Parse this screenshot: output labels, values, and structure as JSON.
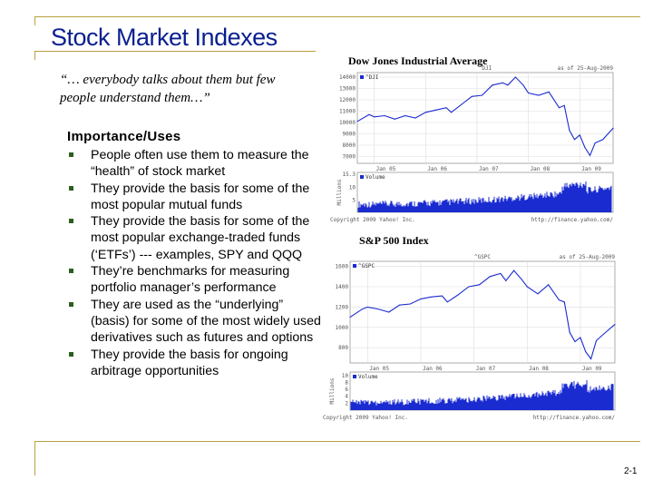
{
  "slide": {
    "title": "Stock Market Indexes",
    "quote": "“… everybody talks about them but few people understand them…”",
    "section_title": "Importance/Uses",
    "bullets": [
      "People often use them to measure the “health” of stock market",
      "They provide the basis for some of the most popular mutual funds",
      "They provide the basis for some of the most popular exchange-traded funds (‘ETFs’) --- examples, SPY and QQQ",
      "They’re benchmarks for measuring portfolio manager’s performance",
      "They are used as the “underlying” (basis) for some of the most widely used derivatives such as futures and options",
      "They provide the basis for ongoing arbitrage opportunities"
    ],
    "slide_number": "2-1"
  },
  "chart_data": [
    {
      "type": "line",
      "title": "Dow Jones Industrial Average",
      "header_center": "^DJI",
      "header_right": "as of 25-Aug-2009",
      "legend": "^DJI",
      "volume_label": "Volume",
      "volume_axis_label": "Millions",
      "copyright": "Copyright 2009 Yahoo! Inc.",
      "source": "http://finance.yahoo.com/",
      "price_ticks": [
        14000,
        13000,
        12000,
        11000,
        10000,
        9000,
        8000,
        7000
      ],
      "price_range": [
        6400,
        14400
      ],
      "volume_ticks": [
        15.3,
        10,
        5
      ],
      "volume_range": [
        0,
        16
      ],
      "x_ticks": [
        "Jan 05",
        "Jan 06",
        "Jan 07",
        "Jan 08",
        "Jan 09"
      ],
      "x_range": [
        2004.67,
        2009.65
      ],
      "x": [
        2004.67,
        2004.9,
        2005.0,
        2005.2,
        2005.4,
        2005.6,
        2005.8,
        2006.0,
        2006.2,
        2006.4,
        2006.5,
        2006.7,
        2006.9,
        2007.1,
        2007.3,
        2007.5,
        2007.6,
        2007.75,
        2007.9,
        2008.0,
        2008.2,
        2008.4,
        2008.6,
        2008.7,
        2008.8,
        2008.9,
        2009.0,
        2009.1,
        2009.2,
        2009.3,
        2009.45,
        2009.65
      ],
      "values": [
        10100,
        10700,
        10500,
        10600,
        10300,
        10600,
        10400,
        10900,
        11100,
        11300,
        10900,
        11600,
        12300,
        12400,
        13300,
        13500,
        13300,
        14000,
        13300,
        12600,
        12400,
        12700,
        11300,
        11500,
        9300,
        8500,
        8900,
        7800,
        7100,
        8200,
        8500,
        9500
      ]
    },
    {
      "type": "line",
      "title": "S&P 500 Index",
      "header_center": "^GSPC",
      "header_right": "as of 25-Aug-2009",
      "legend": "^GSPC",
      "volume_label": "Volume",
      "volume_axis_label": "Millions",
      "copyright": "Copyright 2009 Yahoo! Inc.",
      "source": "http://finance.yahoo.com/",
      "price_ticks": [
        1600,
        1400,
        1200,
        1000,
        800
      ],
      "price_range": [
        650,
        1650
      ],
      "volume_ticks": [
        10.0,
        8.0,
        6.0,
        4.0,
        2.0
      ],
      "volume_range": [
        0,
        11
      ],
      "x_ticks": [
        "Jan 05",
        "Jan 06",
        "Jan 07",
        "Jan 08",
        "Jan 09"
      ],
      "x_range": [
        2004.67,
        2009.65
      ],
      "x": [
        2004.67,
        2004.9,
        2005.0,
        2005.2,
        2005.4,
        2005.6,
        2005.8,
        2006.0,
        2006.2,
        2006.4,
        2006.5,
        2006.7,
        2006.9,
        2007.1,
        2007.3,
        2007.5,
        2007.6,
        2007.75,
        2007.9,
        2008.0,
        2008.2,
        2008.4,
        2008.6,
        2008.7,
        2008.8,
        2008.9,
        2009.0,
        2009.1,
        2009.2,
        2009.3,
        2009.45,
        2009.65
      ],
      "values": [
        1100,
        1180,
        1200,
        1180,
        1150,
        1220,
        1230,
        1280,
        1300,
        1310,
        1250,
        1320,
        1400,
        1420,
        1500,
        1530,
        1460,
        1560,
        1470,
        1400,
        1330,
        1420,
        1270,
        1250,
        950,
        860,
        900,
        760,
        690,
        870,
        940,
        1030
      ]
    }
  ]
}
